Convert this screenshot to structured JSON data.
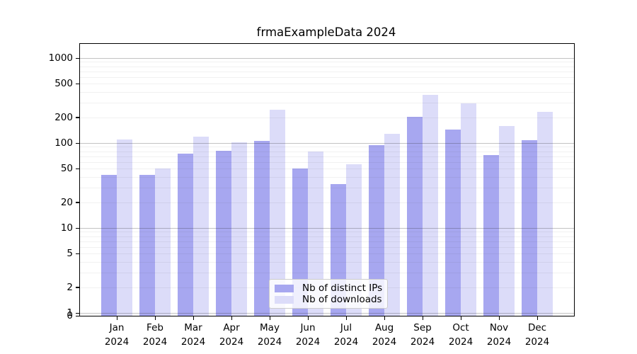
{
  "title": "frmaExampleData 2024",
  "chart_data": {
    "type": "bar",
    "title": "frmaExampleData 2024",
    "x_categories": [
      "Jan",
      "Feb",
      "Mar",
      "Apr",
      "May",
      "Jun",
      "Jul",
      "Aug",
      "Sep",
      "Oct",
      "Nov",
      "Dec"
    ],
    "x_year": "2024",
    "series": [
      {
        "name": "Nb of distinct IPs",
        "color": "#a7a7f0",
        "values": [
          42,
          42,
          75,
          81,
          105,
          50,
          33,
          95,
          203,
          145,
          72,
          109
        ]
      },
      {
        "name": "Nb of downloads",
        "color": "#dcdcf9",
        "values": [
          110,
          50,
          118,
          102,
          248,
          79,
          56,
          128,
          370,
          293,
          158,
          232
        ]
      }
    ],
    "y_scale": "log",
    "y_ticks": [
      1000,
      500,
      200,
      100,
      50,
      20,
      10,
      5,
      2,
      1,
      0
    ],
    "y_major_gridlines": [
      1,
      10,
      100,
      1000
    ],
    "ylim": [
      0,
      1400
    ],
    "grid": "major and minor horizontal gridlines",
    "legend_position": "lower center inside plot",
    "colors": {
      "axis": "#000000",
      "major_grid": "rgba(40,40,40,0.28)",
      "minor_grid": "rgba(80,80,80,0.08)",
      "legend_border": "#cccccc",
      "legend_background": "rgba(255,255,255,0.82)"
    }
  }
}
